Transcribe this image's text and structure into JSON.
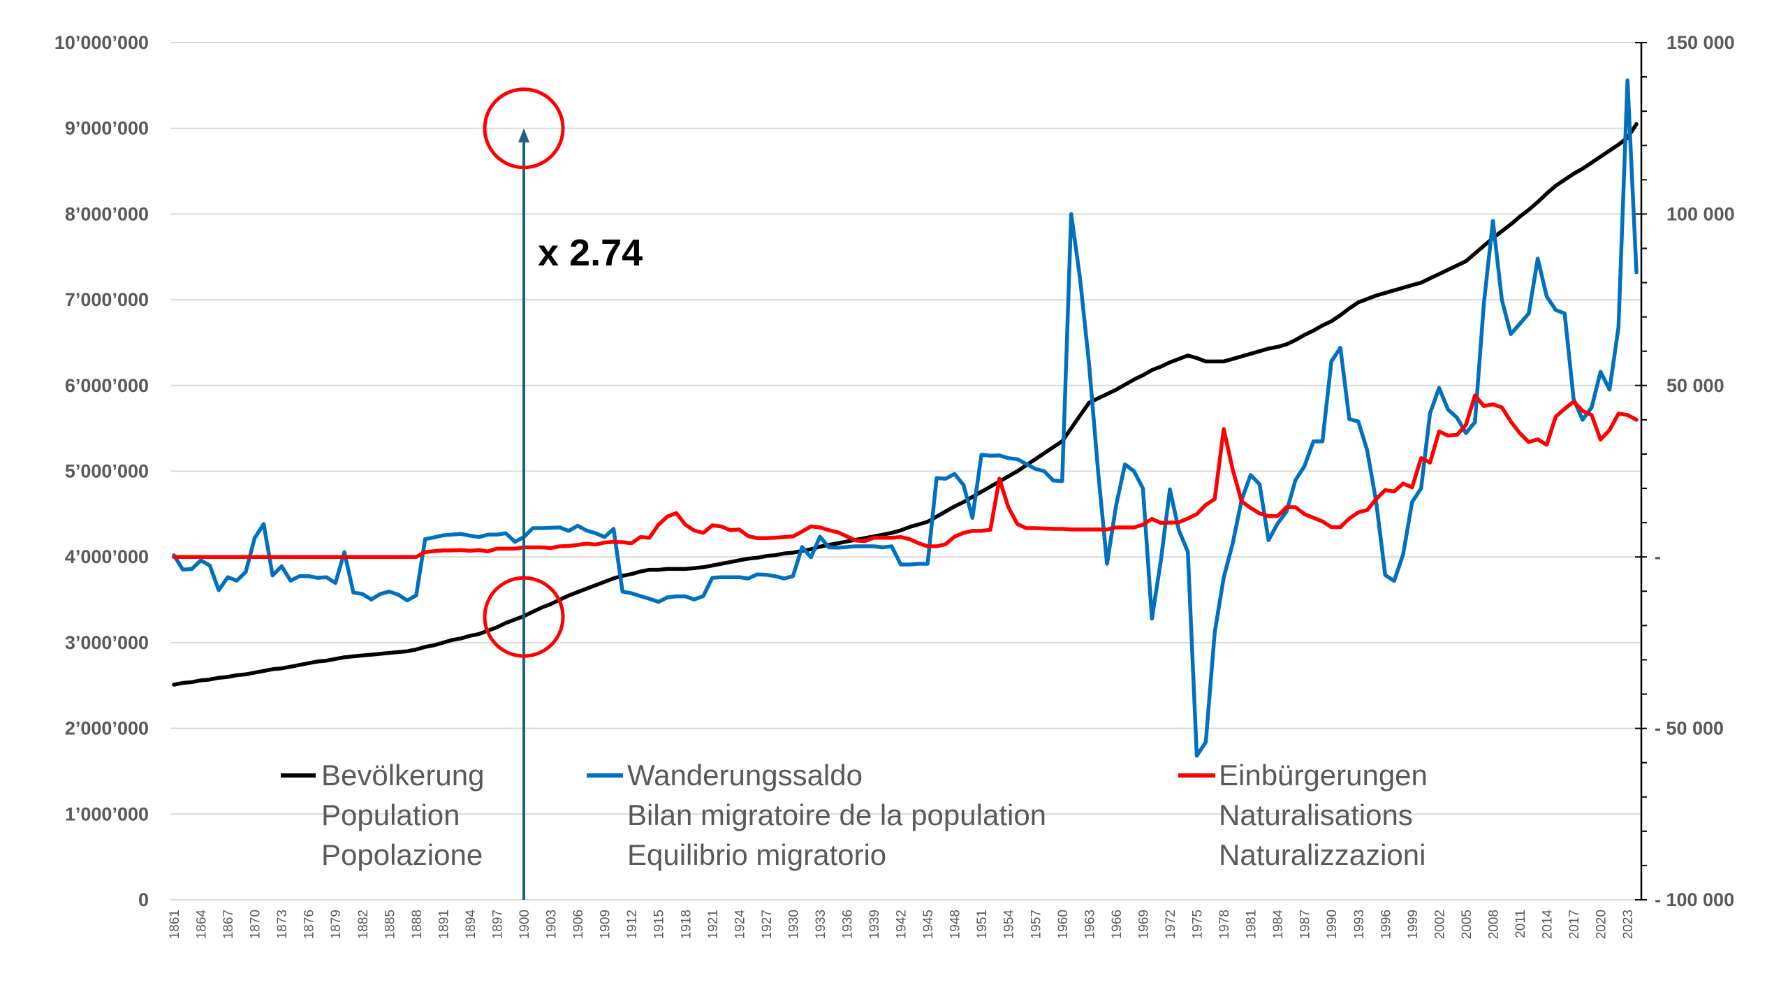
{
  "chart_data": {
    "type": "line",
    "title": "",
    "x_range": [
      1861,
      2024
    ],
    "x_tick_step": 3,
    "left_axis": {
      "range": [
        0,
        10000000
      ],
      "tick_step": 1000000,
      "tick_labels": [
        "0",
        "1’000’000",
        "2’000’000",
        "3’000’000",
        "4’000’000",
        "5’000’000",
        "6’000’000",
        "7’000’000",
        "8’000’000",
        "9’000’000",
        "10’000’000"
      ]
    },
    "right_axis": {
      "range": [
        -100000,
        150000
      ],
      "tick_step": 50000,
      "minor_step": 10000,
      "tick_labels": [
        "- 100 000",
        "- 50 000",
        "-",
        "50 000",
        "100 000",
        "150 000"
      ]
    },
    "grid": true,
    "legend_position": "bottom-inside",
    "series": [
      {
        "name": "Bevölkerung",
        "legend_lines": [
          "Bevölkerung",
          "Population",
          "Popolazione"
        ],
        "axis": "left",
        "color": "#000000",
        "scale": 1000000,
        "values": [
          2.51,
          2.53,
          2.54,
          2.56,
          2.57,
          2.59,
          2.6,
          2.62,
          2.63,
          2.65,
          2.67,
          2.69,
          2.7,
          2.72,
          2.74,
          2.76,
          2.78,
          2.79,
          2.81,
          2.83,
          2.84,
          2.85,
          2.86,
          2.87,
          2.88,
          2.89,
          2.9,
          2.92,
          2.95,
          2.97,
          3.0,
          3.03,
          3.05,
          3.08,
          3.1,
          3.14,
          3.18,
          3.23,
          3.27,
          3.31,
          3.36,
          3.41,
          3.45,
          3.5,
          3.55,
          3.59,
          3.63,
          3.67,
          3.71,
          3.75,
          3.78,
          3.8,
          3.83,
          3.85,
          3.85,
          3.86,
          3.86,
          3.86,
          3.87,
          3.88,
          3.9,
          3.92,
          3.94,
          3.96,
          3.98,
          3.99,
          4.01,
          4.02,
          4.04,
          4.05,
          4.07,
          4.09,
          4.12,
          4.14,
          4.16,
          4.18,
          4.2,
          4.22,
          4.24,
          4.26,
          4.28,
          4.31,
          4.35,
          4.38,
          4.41,
          4.47,
          4.53,
          4.59,
          4.64,
          4.7,
          4.76,
          4.82,
          4.88,
          4.94,
          5.0,
          5.07,
          5.14,
          5.21,
          5.28,
          5.35,
          5.5,
          5.65,
          5.8,
          5.85,
          5.9,
          5.95,
          6.01,
          6.07,
          6.12,
          6.18,
          6.22,
          6.27,
          6.31,
          6.35,
          6.32,
          6.28,
          6.28,
          6.28,
          6.31,
          6.34,
          6.37,
          6.4,
          6.43,
          6.45,
          6.48,
          6.53,
          6.59,
          6.64,
          6.7,
          6.75,
          6.82,
          6.9,
          6.97,
          7.01,
          7.05,
          7.08,
          7.11,
          7.14,
          7.17,
          7.2,
          7.25,
          7.3,
          7.35,
          7.4,
          7.45,
          7.54,
          7.63,
          7.72,
          7.8,
          7.88,
          7.97,
          8.05,
          8.14,
          8.24,
          8.33,
          8.4,
          8.47,
          8.53,
          8.6,
          8.67,
          8.74,
          8.81,
          8.89,
          9.05
        ]
      },
      {
        "name": "Wanderungssaldo",
        "legend_lines": [
          "Wanderungssaldo",
          "Bilan migratoire de la population",
          "Equilibrio migratorio"
        ],
        "axis": "right",
        "color": "#0070c0",
        "scale": 1000,
        "values": [
          0.5,
          -3.7,
          -3.5,
          -1,
          -2.5,
          -9.7,
          -5.9,
          -6.9,
          -4.4,
          5.5,
          9.6,
          -5.4,
          -2.7,
          -6.9,
          -5.6,
          -5.6,
          -6.1,
          -5.9,
          -7.6,
          1.4,
          -10.4,
          -10.8,
          -12.4,
          -10.8,
          -10.1,
          -11,
          -12.7,
          -11.2,
          5.2,
          5.7,
          6.3,
          6.5,
          6.7,
          6.2,
          5.8,
          6.5,
          6.5,
          6.9,
          4.4,
          5.8,
          8.4,
          8.4,
          8.5,
          8.6,
          7.6,
          9.1,
          7.7,
          6.9,
          5.8,
          8.2,
          -10.1,
          -10.6,
          -11.4,
          -12.2,
          -13.1,
          -11.8,
          -11.5,
          -11.5,
          -12.4,
          -11.4,
          -6.1,
          -5.9,
          -5.9,
          -5.9,
          -6.3,
          -5.1,
          -5.2,
          -5.6,
          -6.3,
          -5.6,
          2.9,
          -0.1,
          5.9,
          2.8,
          2.7,
          2.9,
          3.1,
          3.1,
          3.1,
          2.8,
          3.1,
          -2.2,
          -2.2,
          -2,
          -2,
          23,
          22.8,
          24.2,
          21,
          11.4,
          29.8,
          29.5,
          29.6,
          28.8,
          28.5,
          27.1,
          25.7,
          25,
          22.3,
          22.1,
          100,
          81,
          56,
          25,
          -2,
          14.9,
          27,
          25,
          20,
          -18,
          -1,
          19.7,
          7.8,
          1.5,
          -58,
          -54,
          -22,
          -6,
          3.9,
          16.6,
          23.9,
          21.2,
          4.9,
          9.7,
          13.2,
          22.4,
          26.5,
          33.7,
          33.7,
          57,
          61,
          40.2,
          39.5,
          31,
          16,
          -5.3,
          -7,
          0.8,
          16,
          20,
          41.9,
          49.3,
          43,
          40.6,
          36.1,
          39.3,
          74,
          98,
          75,
          65,
          68,
          71,
          87,
          76,
          72,
          71,
          46,
          40,
          43.6,
          54,
          48.8,
          67,
          139,
          83
        ]
      },
      {
        "name": "Einbürgerungen",
        "legend_lines": [
          "Einbürgerungen",
          "Naturalisations",
          "Naturalizzazioni"
        ],
        "axis": "right",
        "color": "#ff0000",
        "scale": 1000,
        "values": [
          0,
          0,
          0,
          0,
          0,
          0,
          0,
          0,
          0,
          0,
          0,
          0,
          0,
          0,
          0,
          0,
          0,
          0,
          0,
          0,
          0,
          0,
          0,
          0,
          0,
          0,
          0,
          0,
          1.4,
          1.7,
          1.9,
          1.9,
          2,
          1.8,
          2,
          1.6,
          2.4,
          2.4,
          2.4,
          2.8,
          2.8,
          2.8,
          2.6,
          3.1,
          3.2,
          3.5,
          3.9,
          3.6,
          4.2,
          4.4,
          4.3,
          4,
          5.8,
          5.6,
          9.4,
          11.8,
          12.8,
          9.4,
          7.7,
          7,
          9.2,
          8.9,
          7.8,
          8,
          6.1,
          5.5,
          5.5,
          5.6,
          5.8,
          6,
          7.4,
          8.9,
          8.6,
          7.8,
          7.2,
          6,
          4.8,
          4.6,
          5.6,
          5.6,
          5.6,
          5.8,
          5.2,
          4,
          3.1,
          3.1,
          3.7,
          5.9,
          7,
          7.6,
          7.6,
          7.9,
          22.8,
          14.5,
          9.6,
          8.4,
          8.4,
          8.3,
          8.2,
          8.2,
          8.0,
          8.0,
          8.0,
          8.0,
          8.0,
          8.6,
          8.6,
          8.6,
          9.4,
          11.1,
          9.9,
          10,
          10.1,
          11.2,
          12.5,
          15.2,
          16.9,
          37.3,
          25.5,
          16.2,
          14.3,
          12.7,
          11.9,
          11.9,
          14.5,
          14.5,
          12.5,
          11.4,
          10.4,
          8.7,
          8.7,
          11.2,
          13,
          13.7,
          16.9,
          19.5,
          19.1,
          21.4,
          20.3,
          28.8,
          27.5,
          36.6,
          35.4,
          35.6,
          38.5,
          47.1,
          44,
          44.5,
          43.6,
          39.5,
          36.1,
          33.5,
          34.3,
          32.7,
          40.9,
          43.2,
          45.3,
          42.6,
          41.4,
          34.2,
          37,
          41.8,
          41.4,
          40
        ]
      }
    ],
    "annotations": [
      {
        "type": "arrow",
        "x": 1900,
        "from": 0,
        "to": 9000000,
        "color": "#1f5f80"
      },
      {
        "type": "circle",
        "x": 1900,
        "y": 3300000,
        "color": "#ff0000"
      },
      {
        "type": "circle",
        "x": 1900,
        "y": 9000000,
        "color": "#ff0000"
      },
      {
        "type": "text",
        "text": "x 2.74"
      }
    ]
  }
}
